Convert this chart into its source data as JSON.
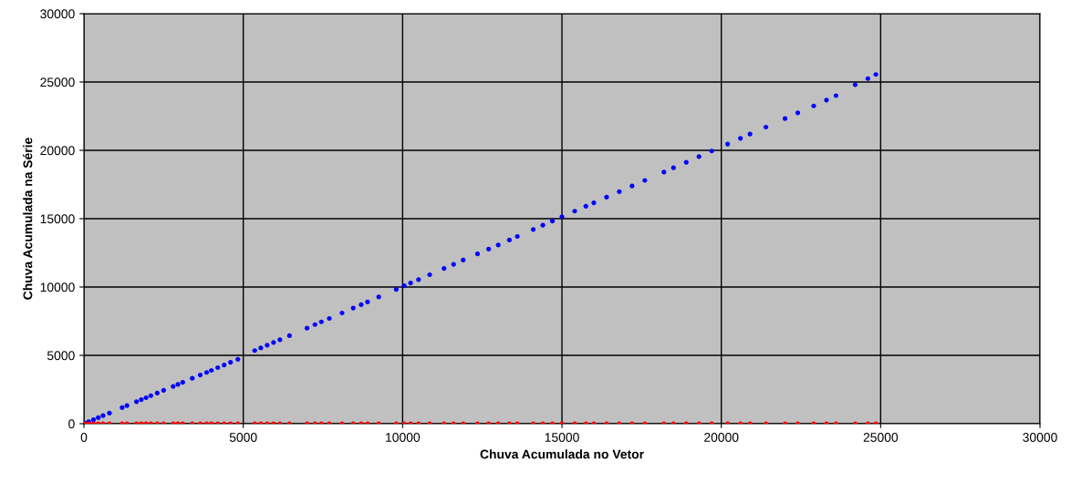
{
  "chart_data": {
    "type": "scatter",
    "xlabel": "Chuva Acumulada no Vetor",
    "ylabel": "Chuva Acumulada na Série",
    "xlim": [
      0,
      30000
    ],
    "xticks": [
      0,
      5000,
      10000,
      15000,
      20000,
      25000,
      30000
    ],
    "ylim": [
      0,
      30000
    ],
    "yticks": [
      0,
      5000,
      10000,
      15000,
      20000,
      25000,
      30000
    ],
    "grid": true,
    "marker": "circle",
    "series": [
      {
        "color": "#0000ff",
        "x": [
          50,
          150,
          300,
          450,
          600,
          800,
          1200,
          1350,
          1650,
          1800,
          1950,
          2100,
          2300,
          2500,
          2800,
          2950,
          3100,
          3400,
          3650,
          3850,
          4000,
          4200,
          4400,
          4600,
          4830,
          5360,
          5550,
          5750,
          5950,
          6150,
          6450,
          7000,
          7250,
          7450,
          7700,
          8100,
          8450,
          8700,
          8900,
          9250,
          9800,
          10050,
          10250,
          10500,
          10850,
          11300,
          11600,
          11900,
          12350,
          12700,
          13000,
          13350,
          13600,
          14100,
          14400,
          14700,
          15000,
          15400,
          15750,
          16000,
          16400,
          16800,
          17200,
          17600,
          18200,
          18500,
          18900,
          19300,
          19700,
          20200,
          20600,
          20900,
          21400,
          22000,
          22400,
          22900,
          23300,
          23600,
          24200,
          24600,
          24850
        ],
        "values": [
          50,
          150,
          290,
          440,
          590,
          780,
          1170,
          1320,
          1610,
          1760,
          1900,
          2050,
          2240,
          2440,
          2730,
          2880,
          3020,
          3320,
          3560,
          3750,
          3900,
          4100,
          4290,
          4490,
          4710,
          5350,
          5540,
          5740,
          5940,
          6140,
          6440,
          6990,
          7250,
          7450,
          7700,
          8100,
          8460,
          8710,
          8910,
          9270,
          9830,
          10090,
          10290,
          10540,
          10900,
          11360,
          11660,
          11970,
          12420,
          12780,
          13080,
          13440,
          13700,
          14210,
          14520,
          14830,
          15140,
          15550,
          15910,
          16160,
          16570,
          16980,
          17390,
          17800,
          18410,
          18720,
          19130,
          19540,
          19950,
          20460,
          20880,
          21190,
          21700,
          22320,
          22740,
          23250,
          23680,
          24000,
          24800,
          25250,
          25550
        ]
      },
      {
        "color": "#ff0000",
        "x": [
          50,
          150,
          300,
          450,
          600,
          800,
          1200,
          1350,
          1650,
          1800,
          1950,
          2100,
          2300,
          2500,
          2800,
          2950,
          3100,
          3400,
          3650,
          3850,
          4000,
          4200,
          4400,
          4600,
          4830,
          5360,
          5550,
          5750,
          5950,
          6150,
          6450,
          7000,
          7250,
          7450,
          7700,
          8100,
          8450,
          8700,
          8900,
          9250,
          9800,
          10050,
          10250,
          10500,
          10850,
          11300,
          11600,
          11900,
          12350,
          12700,
          13000,
          13350,
          13600,
          14100,
          14400,
          14700,
          15000,
          15400,
          15750,
          16000,
          16400,
          16800,
          17200,
          17600,
          18200,
          18500,
          18900,
          19300,
          19700,
          20200,
          20600,
          20900,
          21400,
          22000,
          22400,
          22900,
          23300,
          23600,
          24200,
          24600,
          24850
        ],
        "values": [
          0,
          0,
          0,
          0,
          0,
          0,
          0,
          0,
          0,
          0,
          0,
          0,
          0,
          0,
          0,
          0,
          0,
          0,
          0,
          0,
          0,
          0,
          0,
          0,
          0,
          0,
          0,
          0,
          0,
          0,
          0,
          0,
          0,
          0,
          0,
          0,
          0,
          0,
          0,
          0,
          0,
          0,
          0,
          0,
          0,
          0,
          0,
          0,
          0,
          0,
          0,
          0,
          0,
          0,
          0,
          0,
          0,
          0,
          0,
          0,
          0,
          0,
          0,
          0,
          0,
          0,
          0,
          0,
          0,
          0,
          0,
          0,
          0,
          0,
          0,
          0,
          0,
          0,
          0,
          0,
          0
        ]
      }
    ]
  }
}
